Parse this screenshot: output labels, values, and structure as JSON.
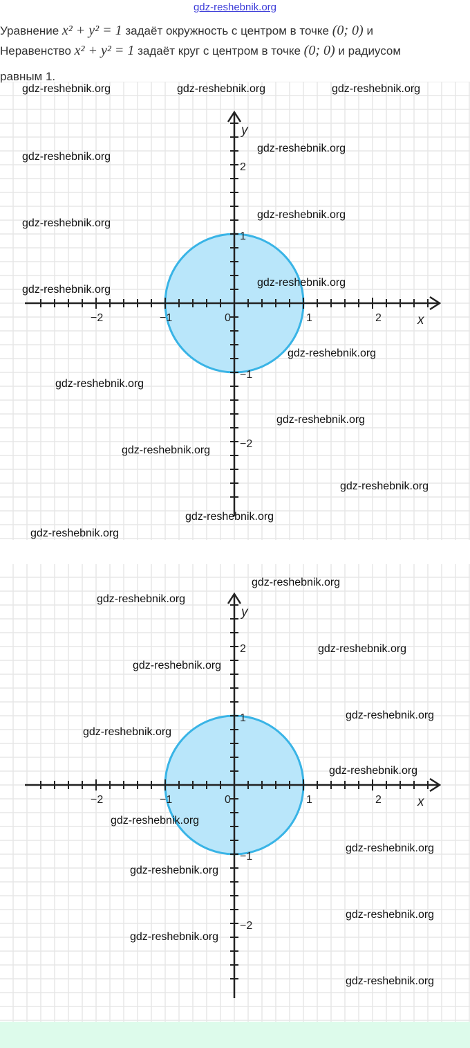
{
  "header_watermark": "gdz-reshebnik.org",
  "paragraph": {
    "line1_a": "Уравнение",
    "line1_math": "x² + y² = 1",
    "line1_b": "задаёт окружность с центром в точке",
    "line1_point": "(0;  0)",
    "line1_c": "и",
    "line2_a": "Неравенство",
    "line2_math": "x² + y² = 1",
    "line2_b": "задаёт круг с центром в точке",
    "line2_point": "(0;  0)",
    "line2_c": "и радиусом",
    "line3": "равным 1."
  },
  "watermark_text": "gdz-reshebnik.org",
  "graphs": [
    {
      "x_label": "x",
      "y_label": "y",
      "x_ticks": [
        "−2",
        "−1",
        "0",
        "1",
        "2"
      ],
      "y_ticks": [
        "2",
        "1",
        "−1",
        "−2"
      ],
      "circle": {
        "center": [
          0,
          0
        ],
        "radius": 1,
        "fill": "#b9e6fa",
        "stroke": "#39b4e6"
      }
    },
    {
      "x_label": "x",
      "y_label": "y",
      "x_ticks": [
        "−2",
        "−1",
        "0",
        "1",
        "2"
      ],
      "y_ticks": [
        "2",
        "1",
        "−1",
        "−2"
      ],
      "circle": {
        "center": [
          0,
          0
        ],
        "radius": 1,
        "fill": "#b9e6fa",
        "stroke": "#39b4e6"
      }
    }
  ]
}
